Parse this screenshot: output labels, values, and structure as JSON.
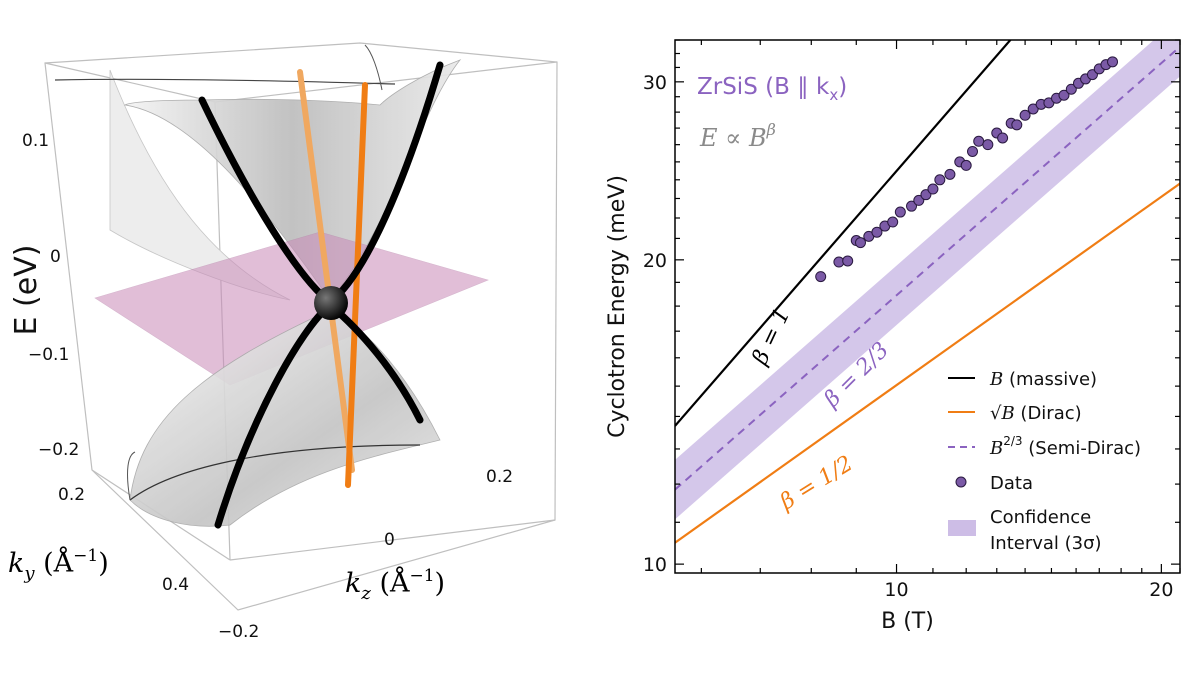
{
  "chart_data": [
    {
      "type": "surface3d",
      "axes": {
        "energy": {
          "label": "E (eV)",
          "ticks": [
            "0.1",
            "0",
            "−0.1",
            "−0.2"
          ]
        },
        "ky": {
          "label": "k",
          "label_sub": "y",
          "label_unit": " (Å",
          "label_sup": "−1",
          "label_close": ")",
          "ticks": [
            "0.2",
            "0.4"
          ]
        },
        "kz": {
          "label": "k",
          "label_sub": "z",
          "label_unit": " (Å",
          "label_sup": "−1",
          "label_close": ")",
          "ticks": [
            "0.2",
            "0",
            "−0.2"
          ]
        }
      },
      "colors": {
        "bands": "#c9c9c9",
        "dispersion": "#000000",
        "linear": "#f07d14",
        "fermi_plane": "#c98ab8"
      }
    },
    {
      "type": "line",
      "scale": "log-log",
      "xlabel": "B (T)",
      "ylabel": "Cyclotron Energy (meV)",
      "xlim": [
        5.6,
        21
      ],
      "ylim": [
        9.8,
        33
      ],
      "x_ticks": [
        10,
        20
      ],
      "y_ticks": [
        10,
        20,
        30
      ],
      "title": "ZrSiS (B ∥ k",
      "title_sub": "x",
      "title_close": ")",
      "subtitle": "E ∝ B",
      "subtitle_sup": "β",
      "series": [
        {
          "name": "B (massive)",
          "label": "β = 1",
          "style": "solid",
          "color": "#000000",
          "x": [
            5.6,
            14.0
          ],
          "y": [
            13.7,
            34.3
          ]
        },
        {
          "name": "√B (Dirac)",
          "label": "β = 1/2",
          "style": "solid",
          "color": "#f07d14",
          "x": [
            5.6,
            21.0
          ],
          "y": [
            10.5,
            23.8
          ]
        },
        {
          "name": "B²ᐟ³ (Semi-Dirac)",
          "label": "β = 2/3",
          "style": "dashed",
          "color": "#8b63c0",
          "x": [
            5.6,
            21.0
          ],
          "y": [
            11.85,
            32.5
          ]
        }
      ],
      "band": {
        "name": "Confidence Interval (3σ)",
        "color": "#cdbde6",
        "factor": 1.07
      },
      "scatter": {
        "name": "Data",
        "color": "#7b5aa6",
        "x": [
          8.2,
          8.6,
          8.8,
          9.0,
          9.1,
          9.3,
          9.5,
          9.7,
          9.9,
          10.1,
          10.4,
          10.6,
          10.8,
          11.0,
          11.2,
          11.5,
          11.8,
          12.0,
          12.2,
          12.4,
          12.7,
          13.0,
          13.2,
          13.5,
          13.7,
          14.0,
          14.3,
          14.6,
          14.9,
          15.2,
          15.5,
          15.8,
          16.1,
          16.4,
          16.7,
          17.0,
          17.3,
          17.6
        ],
        "y": [
          19.25,
          19.9,
          19.95,
          20.9,
          20.8,
          21.1,
          21.3,
          21.6,
          21.8,
          22.3,
          22.6,
          22.9,
          23.2,
          23.5,
          24.0,
          24.3,
          25.0,
          24.8,
          25.6,
          26.2,
          26.0,
          26.7,
          26.4,
          27.3,
          27.2,
          27.8,
          28.2,
          28.5,
          28.6,
          28.9,
          29.1,
          29.5,
          29.9,
          30.2,
          30.5,
          30.9,
          31.2,
          31.4
        ]
      },
      "legend_position": "lower-right",
      "legend": [
        {
          "pre": "B",
          "sup": "",
          "post": " (massive)"
        },
        {
          "pre": "√B",
          "sup": "",
          "post": " (Dirac)"
        },
        {
          "pre": "B",
          "sup": "2/3",
          "post": " (Semi-Dirac)"
        },
        {
          "pre": "",
          "sup": "",
          "post": "Data"
        },
        {
          "pre": "",
          "sup": "",
          "post": "Confidence"
        },
        {
          "pre": "",
          "sup": "",
          "post": "Interval (3σ)"
        }
      ]
    }
  ]
}
